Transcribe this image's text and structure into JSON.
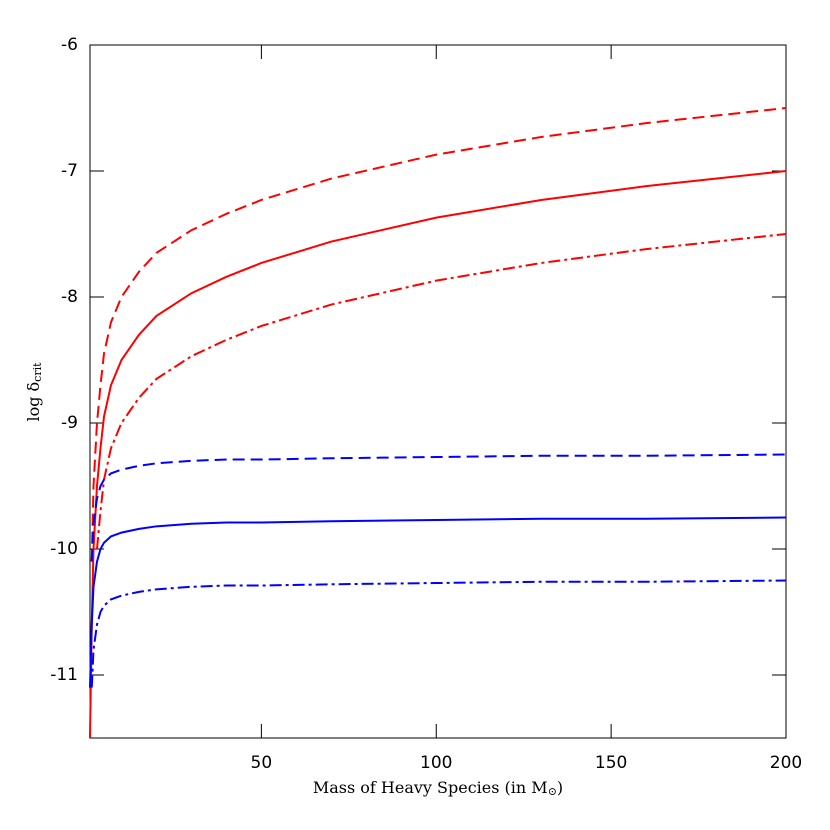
{
  "chart_data": {
    "type": "line",
    "xlabel": {
      "text": "Mass of Heavy Species (in M",
      "sub": "⊙",
      "tail": ")"
    },
    "ylabel": {
      "text": "log δ",
      "sub": "crit"
    },
    "xlim": [
      1,
      200
    ],
    "ylim": [
      -11.5,
      -6
    ],
    "xticks": [
      50,
      100,
      150,
      200
    ],
    "yticks": [
      -6,
      -7,
      -8,
      -9,
      -10,
      -11
    ],
    "x": [
      1,
      1.5,
      2,
      3,
      4,
      5,
      7,
      10,
      15,
      20,
      30,
      40,
      50,
      70,
      100,
      130,
      160,
      200
    ],
    "series": [
      {
        "color": "#ff0000",
        "style": "dashed",
        "values": [
          null,
          -10.1,
          -9.5,
          -9.0,
          -8.7,
          -8.45,
          -8.2,
          -8.0,
          -7.8,
          -7.65,
          -7.47,
          -7.34,
          -7.23,
          -7.06,
          -6.87,
          -6.73,
          -6.62,
          -6.5
        ]
      },
      {
        "color": "#ff0000",
        "style": "solid",
        "values": [
          -11.5,
          -10.6,
          -10.0,
          -9.5,
          -9.2,
          -8.95,
          -8.7,
          -8.5,
          -8.3,
          -8.15,
          -7.97,
          -7.84,
          -7.73,
          -7.56,
          -7.37,
          -7.23,
          -7.12,
          -7.0
        ]
      },
      {
        "color": "#ff0000",
        "style": "dashdot",
        "values": [
          null,
          null,
          null,
          -10.0,
          -9.7,
          -9.45,
          -9.2,
          -9.0,
          -8.8,
          -8.65,
          -8.47,
          -8.34,
          -8.23,
          -8.06,
          -7.87,
          -7.73,
          -7.62,
          -7.5
        ]
      },
      {
        "color": "#0000ff",
        "style": "dashed",
        "values": [
          null,
          -10.1,
          -9.8,
          -9.6,
          -9.5,
          -9.45,
          -9.4,
          -9.37,
          -9.34,
          -9.32,
          -9.3,
          -9.29,
          -9.29,
          -9.28,
          -9.27,
          -9.26,
          -9.26,
          -9.25
        ]
      },
      {
        "color": "#0000ff",
        "style": "solid",
        "values": [
          -11.1,
          -10.6,
          -10.3,
          -10.1,
          -10.0,
          -9.95,
          -9.9,
          -9.87,
          -9.84,
          -9.82,
          -9.8,
          -9.79,
          -9.79,
          -9.78,
          -9.77,
          -9.76,
          -9.76,
          -9.75
        ]
      },
      {
        "color": "#0000ff",
        "style": "dashdot",
        "values": [
          null,
          -11.1,
          -10.8,
          -10.6,
          -10.5,
          -10.45,
          -10.4,
          -10.37,
          -10.34,
          -10.32,
          -10.3,
          -10.29,
          -10.29,
          -10.28,
          -10.27,
          -10.26,
          -10.26,
          -10.25
        ]
      }
    ]
  }
}
